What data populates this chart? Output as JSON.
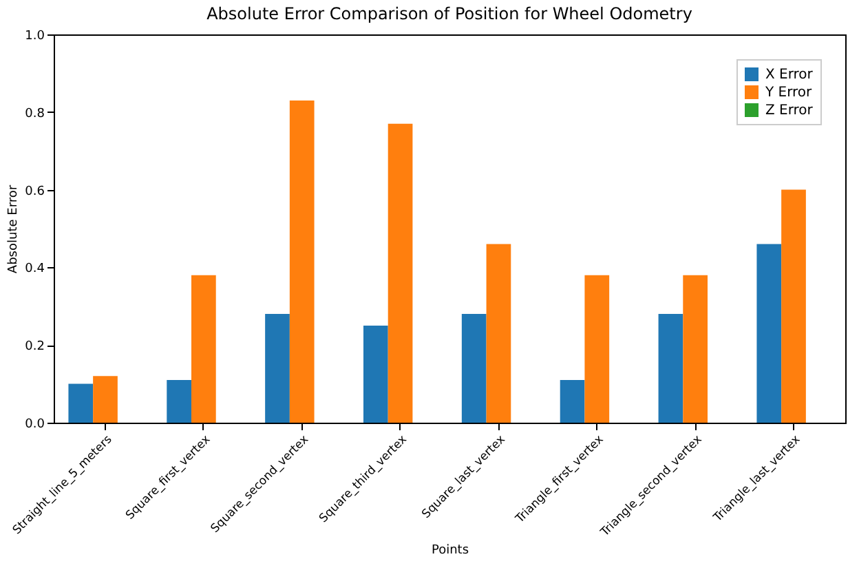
{
  "chart_data": {
    "type": "bar",
    "title": "Absolute Error Comparison of Position for Wheel Odometry",
    "xlabel": "Points",
    "ylabel": "Absolute Error",
    "categories": [
      "Straight_line_5_meters",
      "Square_first_vertex",
      "Square_second_vertex",
      "Square_third_vertex",
      "Square_last_vertex",
      "Triangle_first_vertex",
      "Triangle_second_vertex",
      "Triangle_last_vertex"
    ],
    "series": [
      {
        "name": "X Error",
        "color": "#1f77b4",
        "values": [
          0.1,
          0.11,
          0.28,
          0.25,
          0.28,
          0.11,
          0.28,
          0.46
        ]
      },
      {
        "name": "Y Error",
        "color": "#ff7f0e",
        "values": [
          0.12,
          0.38,
          0.83,
          0.77,
          0.46,
          0.38,
          0.38,
          0.6
        ]
      },
      {
        "name": "Z Error",
        "color": "#2ca02c",
        "values": [
          0,
          0,
          0,
          0,
          0,
          0,
          0,
          0
        ]
      }
    ],
    "ylim": [
      0,
      1
    ],
    "yticks": [
      {
        "value": 0,
        "label": "0.0"
      },
      0.2,
      0.4,
      0.6,
      0.8,
      {
        "value": 1,
        "label": "1.0"
      }
    ],
    "grid": false,
    "legend": "top right"
  }
}
